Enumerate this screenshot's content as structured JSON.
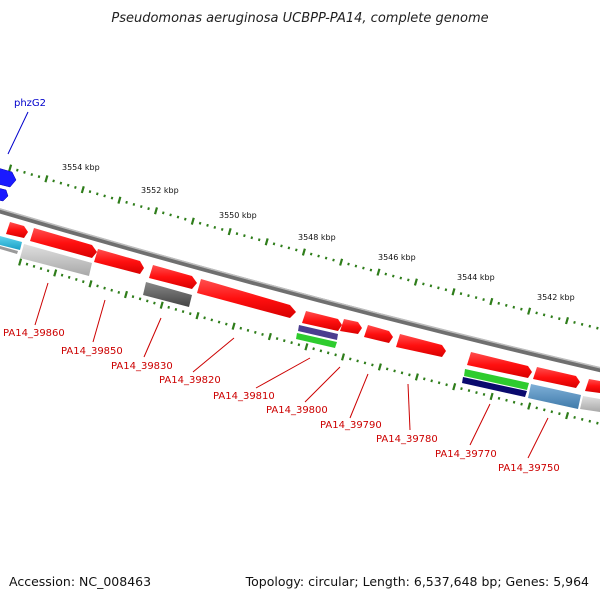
{
  "title": "Pseudomonas aeruginosa UCBPP-PA14, complete genome",
  "accession": "Accession: NC_008463",
  "topology": "Topology: circular; Length: 6,537,648 bp; Genes: 5,964",
  "scale_labels": [
    "3554 kbp",
    "3552 kbp",
    "3550 kbp",
    "3548 kbp",
    "3546 kbp",
    "3544 kbp",
    "3542 kbp"
  ],
  "gene_labels": [
    {
      "text": "phzG2",
      "color": "#0000cc"
    },
    {
      "text": "PA14_39860",
      "color": "#cc0000"
    },
    {
      "text": "PA14_39850",
      "color": "#cc0000"
    },
    {
      "text": "PA14_39830",
      "color": "#cc0000"
    },
    {
      "text": "PA14_39820",
      "color": "#cc0000"
    },
    {
      "text": "PA14_39810",
      "color": "#cc0000"
    },
    {
      "text": "PA14_39800",
      "color": "#cc0000"
    },
    {
      "text": "PA14_39790",
      "color": "#cc0000"
    },
    {
      "text": "PA14_39780",
      "color": "#cc0000"
    },
    {
      "text": "PA14_39770",
      "color": "#cc0000"
    },
    {
      "text": "PA14_39750",
      "color": "#cc0000"
    }
  ],
  "colors": {
    "gene_red": "#ff2020",
    "gene_blue": "#1a1aff",
    "tick_green": "#2e7d1a",
    "backbone_gray": "#8a8a8a"
  }
}
